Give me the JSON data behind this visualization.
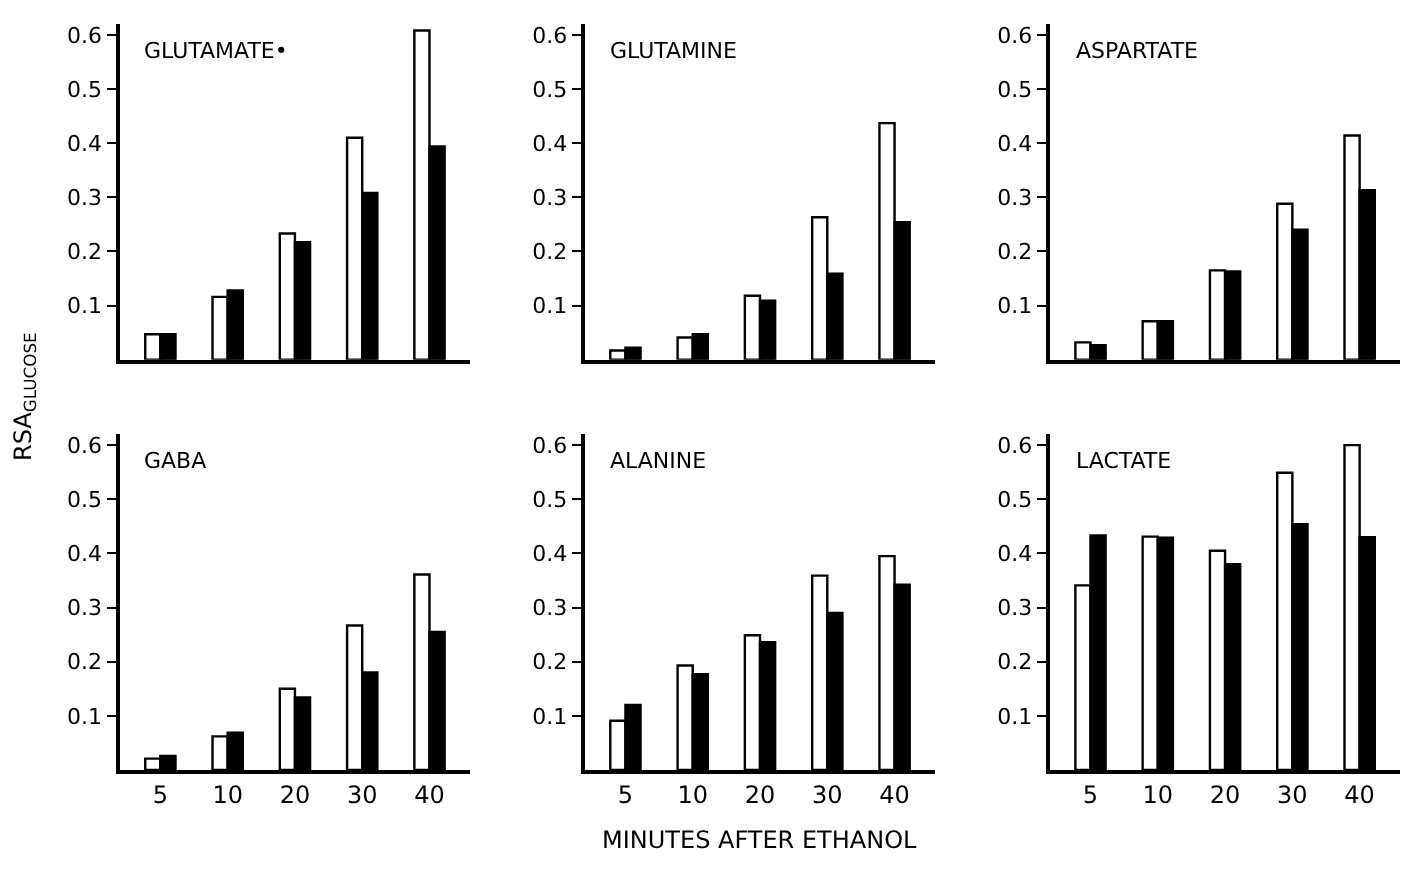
{
  "chart_data": [
    {
      "type": "bar",
      "title": "GLUTAMATE•",
      "ylabel": "RSA$_{GLUCOSE}$",
      "categories": [
        "5",
        "10",
        "20",
        "30",
        "40"
      ],
      "tick_labels": "y",
      "ylim": [
        0,
        0.62
      ],
      "yticks": [
        0.1,
        0.2,
        0.3,
        0.4,
        0.5,
        0.6
      ],
      "series": [
        {
          "color": "#ffffff",
          "values": [
            0.047,
            0.116,
            0.233,
            0.41,
            0.608
          ]
        },
        {
          "color": "#000000",
          "values": [
            0.047,
            0.128,
            0.217,
            0.308,
            0.394
          ]
        }
      ]
    },
    {
      "type": "bar",
      "title": "GLUTAMINE",
      "categories": [
        "5",
        "10",
        "20",
        "30",
        "40"
      ],
      "tick_labels": "y",
      "ylim": [
        0,
        0.62
      ],
      "yticks": [
        0.1,
        0.2,
        0.3,
        0.4,
        0.5,
        0.6
      ],
      "series": [
        {
          "color": "#ffffff",
          "values": [
            0.017,
            0.041,
            0.118,
            0.263,
            0.437
          ]
        },
        {
          "color": "#000000",
          "values": [
            0.022,
            0.047,
            0.109,
            0.159,
            0.254
          ]
        }
      ]
    },
    {
      "type": "bar",
      "title": "ASPARTATE",
      "categories": [
        "5",
        "10",
        "20",
        "30",
        "40"
      ],
      "tick_labels": "y",
      "ylim": [
        0,
        0.62
      ],
      "yticks": [
        0.1,
        0.2,
        0.3,
        0.4,
        0.5,
        0.6
      ],
      "series": [
        {
          "color": "#ffffff",
          "values": [
            0.032,
            0.071,
            0.165,
            0.288,
            0.414
          ]
        },
        {
          "color": "#000000",
          "values": [
            0.027,
            0.071,
            0.163,
            0.24,
            0.313
          ]
        }
      ]
    },
    {
      "type": "bar",
      "title": "GABA",
      "categories": [
        "5",
        "10",
        "20",
        "30",
        "40"
      ],
      "ylim": [
        0,
        0.62
      ],
      "yticks": [
        0.1,
        0.2,
        0.3,
        0.4,
        0.5,
        0.6
      ],
      "series": [
        {
          "color": "#ffffff",
          "values": [
            0.021,
            0.062,
            0.15,
            0.267,
            0.361
          ]
        },
        {
          "color": "#000000",
          "values": [
            0.026,
            0.069,
            0.134,
            0.18,
            0.255
          ]
        }
      ]
    },
    {
      "type": "bar",
      "title": "ALANINE",
      "xlabel": "MINUTES AFTER ETHANOL",
      "categories": [
        "5",
        "10",
        "20",
        "30",
        "40"
      ],
      "ylim": [
        0,
        0.62
      ],
      "yticks": [
        0.1,
        0.2,
        0.3,
        0.4,
        0.5,
        0.6
      ],
      "series": [
        {
          "color": "#ffffff",
          "values": [
            0.091,
            0.193,
            0.249,
            0.359,
            0.395
          ]
        },
        {
          "color": "#000000",
          "values": [
            0.12,
            0.177,
            0.236,
            0.29,
            0.342
          ]
        }
      ]
    },
    {
      "type": "bar",
      "title": "LACTATE",
      "categories": [
        "5",
        "10",
        "20",
        "30",
        "40"
      ],
      "ylim": [
        0,
        0.62
      ],
      "yticks": [
        0.1,
        0.2,
        0.3,
        0.4,
        0.5,
        0.6
      ],
      "series": [
        {
          "color": "#ffffff",
          "values": [
            0.341,
            0.431,
            0.405,
            0.549,
            0.6
          ]
        },
        {
          "color": "#000000",
          "values": [
            0.433,
            0.429,
            0.38,
            0.454,
            0.43
          ]
        }
      ]
    }
  ]
}
